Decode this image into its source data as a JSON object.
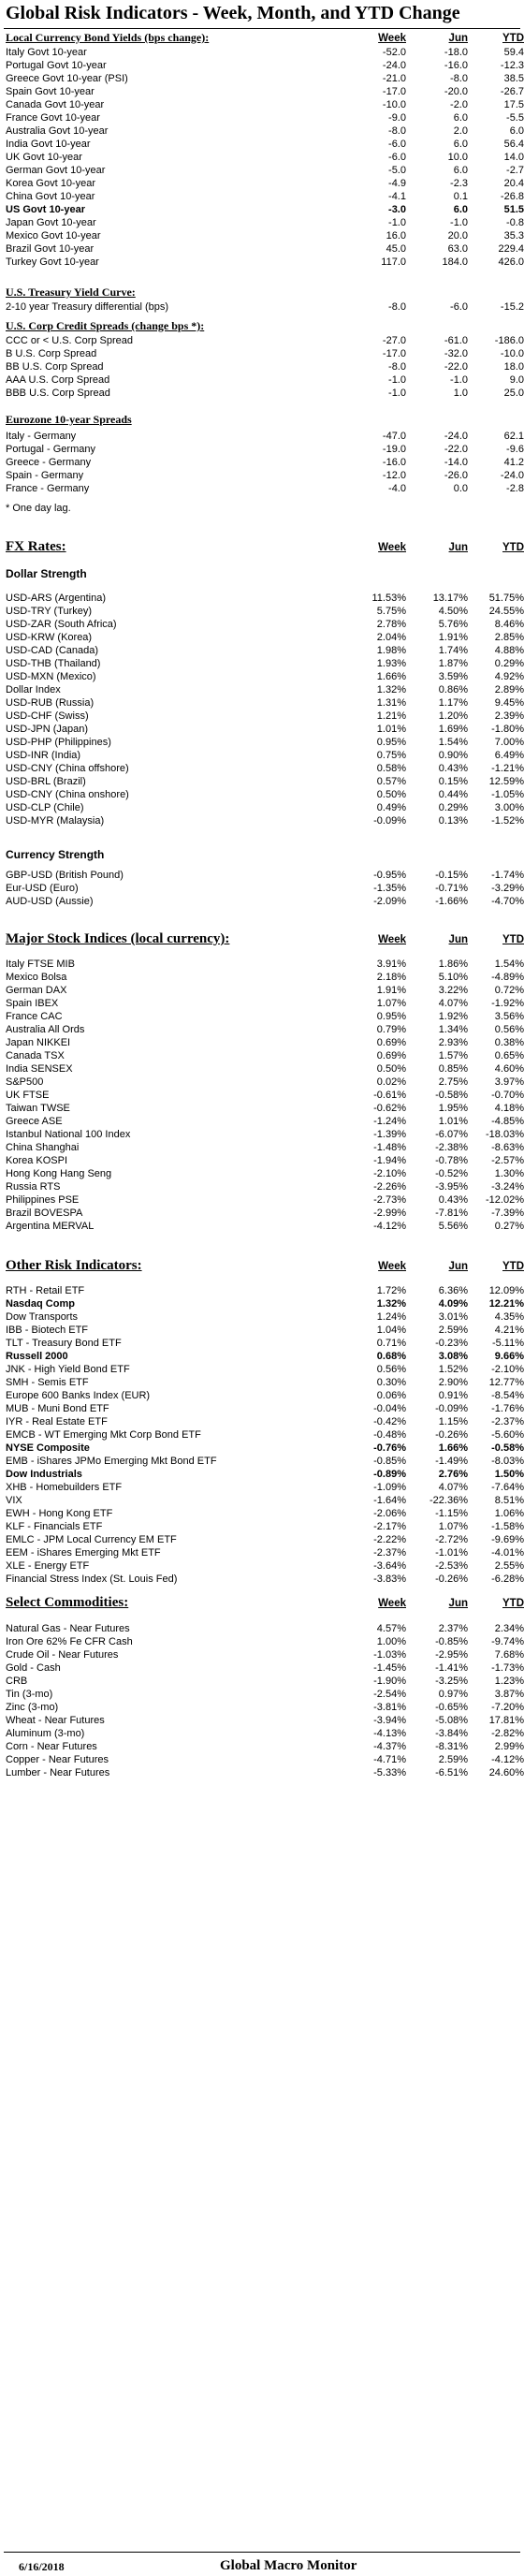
{
  "title": "Global Risk Indicators - Week, Month, and YTD Change",
  "columns": {
    "week": "Week",
    "jun": "Jun",
    "ytd": "YTD"
  },
  "footer": {
    "date": "6/16/2018",
    "brand": "Global Macro Monitor"
  },
  "bond_yields": {
    "heading": "Local Currency Bond Yields (bps change):",
    "rows": [
      {
        "label": "Italy Govt 10-year",
        "week": "-52.0",
        "jun": "-18.0",
        "ytd": "59.4",
        "bold": false
      },
      {
        "label": "Portugal Govt 10-year",
        "week": "-24.0",
        "jun": "-16.0",
        "ytd": "-12.3",
        "bold": false
      },
      {
        "label": "Greece Govt 10-year (PSI)",
        "week": "-21.0",
        "jun": "-8.0",
        "ytd": "38.5",
        "bold": false
      },
      {
        "label": "Spain Govt 10-year",
        "week": "-17.0",
        "jun": "-20.0",
        "ytd": "-26.7",
        "bold": false
      },
      {
        "label": "Canada Govt 10-year",
        "week": "-10.0",
        "jun": "-2.0",
        "ytd": "17.5",
        "bold": false
      },
      {
        "label": "France Govt 10-year",
        "week": "-9.0",
        "jun": "6.0",
        "ytd": "-5.5",
        "bold": false
      },
      {
        "label": "Australia Govt 10-year",
        "week": "-8.0",
        "jun": "2.0",
        "ytd": "6.0",
        "bold": false
      },
      {
        "label": "India Govt 10-year",
        "week": "-6.0",
        "jun": "6.0",
        "ytd": "56.4",
        "bold": false
      },
      {
        "label": "UK Govt 10-year",
        "week": "-6.0",
        "jun": "10.0",
        "ytd": "14.0",
        "bold": false
      },
      {
        "label": "German Govt 10-year",
        "week": "-5.0",
        "jun": "6.0",
        "ytd": "-2.7",
        "bold": false
      },
      {
        "label": "Korea Govt 10-year",
        "week": "-4.9",
        "jun": "-2.3",
        "ytd": "20.4",
        "bold": false
      },
      {
        "label": "China Govt 10-year",
        "week": "-4.1",
        "jun": "0.1",
        "ytd": "-26.8",
        "bold": false
      },
      {
        "label": "US Govt 10-year",
        "week": "-3.0",
        "jun": "6.0",
        "ytd": "51.5",
        "bold": true
      },
      {
        "label": "Japan Govt 10-year",
        "week": "-1.0",
        "jun": "-1.0",
        "ytd": "-0.8",
        "bold": false
      },
      {
        "label": "Mexico Govt 10-year",
        "week": "16.0",
        "jun": "20.0",
        "ytd": "35.3",
        "bold": false
      },
      {
        "label": "Brazil Govt 10-year",
        "week": "45.0",
        "jun": "63.0",
        "ytd": "229.4",
        "bold": false
      },
      {
        "label": "Turkey Govt 10-year",
        "week": "117.0",
        "jun": "184.0",
        "ytd": "426.0",
        "bold": false
      }
    ]
  },
  "yield_curve": {
    "heading": "U.S. Treasury Yield Curve:",
    "rows": [
      {
        "label": "2-10 year Treasury differential (bps)",
        "week": "-8.0",
        "jun": "-6.0",
        "ytd": "-15.2",
        "bold": false
      }
    ]
  },
  "corp_spreads": {
    "heading": "U.S. Corp Credit Spreads (change bps *):",
    "rows": [
      {
        "label": "CCC or < U.S. Corp Spread",
        "week": "-27.0",
        "jun": "-61.0",
        "ytd": "-186.0",
        "bold": false
      },
      {
        "label": "B U.S. Corp Spread",
        "week": "-17.0",
        "jun": "-32.0",
        "ytd": "-10.0",
        "bold": false
      },
      {
        "label": "BB U.S. Corp Spread",
        "week": "-8.0",
        "jun": "-22.0",
        "ytd": "18.0",
        "bold": false
      },
      {
        "label": "AAA U.S. Corp Spread",
        "week": "-1.0",
        "jun": "-1.0",
        "ytd": "9.0",
        "bold": false
      },
      {
        "label": "BBB U.S. Corp Spread",
        "week": "-1.0",
        "jun": "1.0",
        "ytd": "25.0",
        "bold": false
      }
    ]
  },
  "euro_spreads": {
    "heading": "Eurozone 10-year Spreads",
    "rows": [
      {
        "label": "Italy - Germany",
        "week": "-47.0",
        "jun": "-24.0",
        "ytd": "62.1",
        "bold": false
      },
      {
        "label": "Portugal - Germany",
        "week": "-19.0",
        "jun": "-22.0",
        "ytd": "-9.6",
        "bold": false
      },
      {
        "label": "Greece - Germany",
        "week": "-16.0",
        "jun": "-14.0",
        "ytd": "41.2",
        "bold": false
      },
      {
        "label": "Spain - Germany",
        "week": "-12.0",
        "jun": "-26.0",
        "ytd": "-24.0",
        "bold": false
      },
      {
        "label": "France - Germany",
        "week": "-4.0",
        "jun": "0.0",
        "ytd": "-2.8",
        "bold": false
      }
    ],
    "note": "* One day lag."
  },
  "fx": {
    "heading": "FX Rates:",
    "dollar_heading": "Dollar Strength",
    "dollar_rows": [
      {
        "label": "USD-ARS (Argentina)",
        "week": "11.53%",
        "jun": "13.17%",
        "ytd": "51.75%",
        "bold": false
      },
      {
        "label": "USD-TRY (Turkey)",
        "week": "5.75%",
        "jun": "4.50%",
        "ytd": "24.55%",
        "bold": false
      },
      {
        "label": "USD-ZAR (South Africa)",
        "week": "2.78%",
        "jun": "5.76%",
        "ytd": "8.46%",
        "bold": false
      },
      {
        "label": "USD-KRW (Korea)",
        "week": "2.04%",
        "jun": "1.91%",
        "ytd": "2.85%",
        "bold": false
      },
      {
        "label": "USD-CAD (Canada)",
        "week": "1.98%",
        "jun": "1.74%",
        "ytd": "4.88%",
        "bold": false
      },
      {
        "label": "USD-THB  (Thailand)",
        "week": "1.93%",
        "jun": "1.87%",
        "ytd": "0.29%",
        "bold": false
      },
      {
        "label": "USD-MXN  (Mexico)",
        "week": "1.66%",
        "jun": "3.59%",
        "ytd": "4.92%",
        "bold": false
      },
      {
        "label": "Dollar Index",
        "week": "1.32%",
        "jun": "0.86%",
        "ytd": "2.89%",
        "bold": false
      },
      {
        "label": "USD-RUB (Russia)",
        "week": "1.31%",
        "jun": "1.17%",
        "ytd": "9.45%",
        "bold": false
      },
      {
        "label": "USD-CHF (Swiss)",
        "week": "1.21%",
        "jun": "1.20%",
        "ytd": "2.39%",
        "bold": false
      },
      {
        "label": "USD-JPN (Japan)",
        "week": "1.01%",
        "jun": "1.69%",
        "ytd": "-1.80%",
        "bold": false
      },
      {
        "label": "USD-PHP (Philippines)",
        "week": "0.95%",
        "jun": "1.54%",
        "ytd": "7.00%",
        "bold": false
      },
      {
        "label": "USD-INR (India)",
        "week": "0.75%",
        "jun": "0.90%",
        "ytd": "6.49%",
        "bold": false
      },
      {
        "label": "USD-CNY (China offshore)",
        "week": "0.58%",
        "jun": "0.43%",
        "ytd": "-1.21%",
        "bold": false
      },
      {
        "label": "USD-BRL (Brazil)",
        "week": "0.57%",
        "jun": "0.15%",
        "ytd": "12.59%",
        "bold": false
      },
      {
        "label": "USD-CNY (China onshore)",
        "week": "0.50%",
        "jun": "0.44%",
        "ytd": "-1.05%",
        "bold": false
      },
      {
        "label": "USD-CLP (Chile)",
        "week": "0.49%",
        "jun": "0.29%",
        "ytd": "3.00%",
        "bold": false
      },
      {
        "label": "USD-MYR (Malaysia)",
        "week": "-0.09%",
        "jun": "0.13%",
        "ytd": "-1.52%",
        "bold": false
      }
    ],
    "currency_heading": "Currency Strength",
    "currency_rows": [
      {
        "label": "GBP-USD (British Pound)",
        "week": "-0.95%",
        "jun": "-0.15%",
        "ytd": "-1.74%",
        "bold": false
      },
      {
        "label": "Eur-USD (Euro)",
        "week": "-1.35%",
        "jun": "-0.71%",
        "ytd": "-3.29%",
        "bold": false
      },
      {
        "label": "AUD-USD (Aussie)",
        "week": "-2.09%",
        "jun": "-1.66%",
        "ytd": "-4.70%",
        "bold": false
      }
    ]
  },
  "stocks": {
    "heading": "Major Stock Indices (local currency):",
    "rows": [
      {
        "label": "Italy FTSE MIB",
        "week": "3.91%",
        "jun": "1.86%",
        "ytd": "1.54%",
        "bold": false
      },
      {
        "label": "Mexico Bolsa",
        "week": "2.18%",
        "jun": "5.10%",
        "ytd": "-4.89%",
        "bold": false
      },
      {
        "label": "German DAX",
        "week": "1.91%",
        "jun": "3.22%",
        "ytd": "0.72%",
        "bold": false
      },
      {
        "label": "Spain IBEX",
        "week": "1.07%",
        "jun": "4.07%",
        "ytd": "-1.92%",
        "bold": false
      },
      {
        "label": "France CAC",
        "week": "0.95%",
        "jun": "1.92%",
        "ytd": "3.56%",
        "bold": false
      },
      {
        "label": "Australia All Ords",
        "week": "0.79%",
        "jun": "1.34%",
        "ytd": "0.56%",
        "bold": false
      },
      {
        "label": "Japan NIKKEI",
        "week": "0.69%",
        "jun": "2.93%",
        "ytd": "0.38%",
        "bold": false
      },
      {
        "label": "Canada TSX",
        "week": "0.69%",
        "jun": "1.57%",
        "ytd": "0.65%",
        "bold": false
      },
      {
        "label": "India SENSEX",
        "week": "0.50%",
        "jun": "0.85%",
        "ytd": "4.60%",
        "bold": false
      },
      {
        "label": "S&P500",
        "week": "0.02%",
        "jun": "2.75%",
        "ytd": "3.97%",
        "bold": false
      },
      {
        "label": "UK FTSE",
        "week": "-0.61%",
        "jun": "-0.58%",
        "ytd": "-0.70%",
        "bold": false
      },
      {
        "label": "Taiwan  TWSE",
        "week": "-0.62%",
        "jun": "1.95%",
        "ytd": "4.18%",
        "bold": false
      },
      {
        "label": "Greece ASE",
        "week": "-1.24%",
        "jun": "1.01%",
        "ytd": "-4.85%",
        "bold": false
      },
      {
        "label": "Istanbul National 100 Index",
        "week": "-1.39%",
        "jun": "-6.07%",
        "ytd": "-18.03%",
        "bold": false
      },
      {
        "label": "China Shanghai",
        "week": "-1.48%",
        "jun": "-2.38%",
        "ytd": "-8.63%",
        "bold": false
      },
      {
        "label": "Korea KOSPI",
        "week": "-1.94%",
        "jun": "-0.78%",
        "ytd": "-2.57%",
        "bold": false
      },
      {
        "label": "Hong Kong Hang Seng",
        "week": "-2.10%",
        "jun": "-0.52%",
        "ytd": "1.30%",
        "bold": false
      },
      {
        "label": "Russia RTS",
        "week": "-2.26%",
        "jun": "-3.95%",
        "ytd": "-3.24%",
        "bold": false
      },
      {
        "label": "Philippines PSE",
        "week": "-2.73%",
        "jun": "0.43%",
        "ytd": "-12.02%",
        "bold": false
      },
      {
        "label": "Brazil BOVESPA",
        "week": "-2.99%",
        "jun": "-7.81%",
        "ytd": "-7.39%",
        "bold": false
      },
      {
        "label": "Argentina MERVAL",
        "week": "-4.12%",
        "jun": "5.56%",
        "ytd": "0.27%",
        "bold": false
      }
    ]
  },
  "other": {
    "heading": "Other Risk Indicators:",
    "rows": [
      {
        "label": "RTH - Retail ETF",
        "week": "1.72%",
        "jun": "6.36%",
        "ytd": "12.09%",
        "bold": false
      },
      {
        "label": "Nasdaq Comp",
        "week": "1.32%",
        "jun": "4.09%",
        "ytd": "12.21%",
        "bold": true
      },
      {
        "label": "Dow Transports",
        "week": "1.24%",
        "jun": "3.01%",
        "ytd": "4.35%",
        "bold": false
      },
      {
        "label": "IBB - Biotech ETF",
        "week": "1.04%",
        "jun": "2.59%",
        "ytd": "4.21%",
        "bold": false
      },
      {
        "label": "TLT - Treasury Bond ETF",
        "week": "0.71%",
        "jun": "-0.23%",
        "ytd": "-5.11%",
        "bold": false
      },
      {
        "label": "Russell 2000",
        "week": "0.68%",
        "jun": "3.08%",
        "ytd": "9.66%",
        "bold": true
      },
      {
        "label": "JNK - High Yield Bond ETF",
        "week": "0.56%",
        "jun": "1.52%",
        "ytd": "-2.10%",
        "bold": false
      },
      {
        "label": "SMH - Semis ETF",
        "week": "0.30%",
        "jun": "2.90%",
        "ytd": "12.77%",
        "bold": false
      },
      {
        "label": "Europe 600 Banks Index (EUR)",
        "week": "0.06%",
        "jun": "0.91%",
        "ytd": "-8.54%",
        "bold": false
      },
      {
        "label": "MUB - Muni Bond ETF",
        "week": "-0.04%",
        "jun": "-0.09%",
        "ytd": "-1.76%",
        "bold": false
      },
      {
        "label": "IYR - Real Estate ETF",
        "week": "-0.42%",
        "jun": "1.15%",
        "ytd": "-2.37%",
        "bold": false
      },
      {
        "label": "EMCB - WT Emerging Mkt Corp Bond ETF",
        "week": "-0.48%",
        "jun": "-0.26%",
        "ytd": "-5.60%",
        "bold": false
      },
      {
        "label": "NYSE Composite",
        "week": "-0.76%",
        "jun": "1.66%",
        "ytd": "-0.58%",
        "bold": true
      },
      {
        "label": "EMB - iShares JPMo Emerging Mkt Bond ETF",
        "week": "-0.85%",
        "jun": "-1.49%",
        "ytd": "-8.03%",
        "bold": false
      },
      {
        "label": "Dow Industrials",
        "week": "-0.89%",
        "jun": "2.76%",
        "ytd": "1.50%",
        "bold": true
      },
      {
        "label": "XHB - Homebuilders ETF",
        "week": "-1.09%",
        "jun": "4.07%",
        "ytd": "-7.64%",
        "bold": false
      },
      {
        "label": "VIX",
        "week": "-1.64%",
        "jun": "-22.36%",
        "ytd": "8.51%",
        "bold": false
      },
      {
        "label": "EWH - Hong Kong ETF",
        "week": "-2.06%",
        "jun": "-1.15%",
        "ytd": "1.06%",
        "bold": false
      },
      {
        "label": "KLF - Financials ETF",
        "week": "-2.17%",
        "jun": "1.07%",
        "ytd": "-1.58%",
        "bold": false
      },
      {
        "label": "EMLC - JPM Local Currency EM ETF",
        "week": "-2.22%",
        "jun": "-2.72%",
        "ytd": "-9.69%",
        "bold": false
      },
      {
        "label": "EEM - iShares Emerging Mkt ETF",
        "week": "-2.37%",
        "jun": "-1.01%",
        "ytd": "-4.01%",
        "bold": false
      },
      {
        "label": "XLE - Energy ETF",
        "week": "-3.64%",
        "jun": "-2.53%",
        "ytd": "2.55%",
        "bold": false
      },
      {
        "label": "Financial Stress Index (St. Louis Fed)",
        "week": "-3.83%",
        "jun": "-0.26%",
        "ytd": "-6.28%",
        "bold": false
      }
    ]
  },
  "commodities": {
    "heading": "Select Commodities:",
    "rows": [
      {
        "label": "Natural Gas - Near Futures",
        "week": "4.57%",
        "jun": "2.37%",
        "ytd": "2.34%",
        "bold": false
      },
      {
        "label": "Iron Ore 62% Fe CFR Cash",
        "week": "1.00%",
        "jun": "-0.85%",
        "ytd": "-9.74%",
        "bold": false
      },
      {
        "label": "Crude Oil - Near Futures",
        "week": "-1.03%",
        "jun": "-2.95%",
        "ytd": "7.68%",
        "bold": false
      },
      {
        "label": "Gold - Cash",
        "week": "-1.45%",
        "jun": "-1.41%",
        "ytd": "-1.73%",
        "bold": false
      },
      {
        "label": "CRB",
        "week": "-1.90%",
        "jun": "-3.25%",
        "ytd": "1.23%",
        "bold": false
      },
      {
        "label": "Tin (3-mo)",
        "week": "-2.54%",
        "jun": "0.97%",
        "ytd": "3.87%",
        "bold": false
      },
      {
        "label": "Zinc (3-mo)",
        "week": "-3.81%",
        "jun": "-0.65%",
        "ytd": "-7.20%",
        "bold": false
      },
      {
        "label": "Wheat - Near Futures",
        "week": "-3.94%",
        "jun": "-5.08%",
        "ytd": "17.81%",
        "bold": false
      },
      {
        "label": "Aluminum (3-mo)",
        "week": "-4.13%",
        "jun": "-3.84%",
        "ytd": "-2.82%",
        "bold": false
      },
      {
        "label": "Corn - Near Futures",
        "week": "-4.37%",
        "jun": "-8.31%",
        "ytd": "2.99%",
        "bold": false
      },
      {
        "label": "Copper - Near Futures",
        "week": "-4.71%",
        "jun": "2.59%",
        "ytd": "-4.12%",
        "bold": false
      },
      {
        "label": "Lumber - Near Futures",
        "week": "-5.33%",
        "jun": "-6.51%",
        "ytd": "24.60%",
        "bold": false
      }
    ]
  }
}
